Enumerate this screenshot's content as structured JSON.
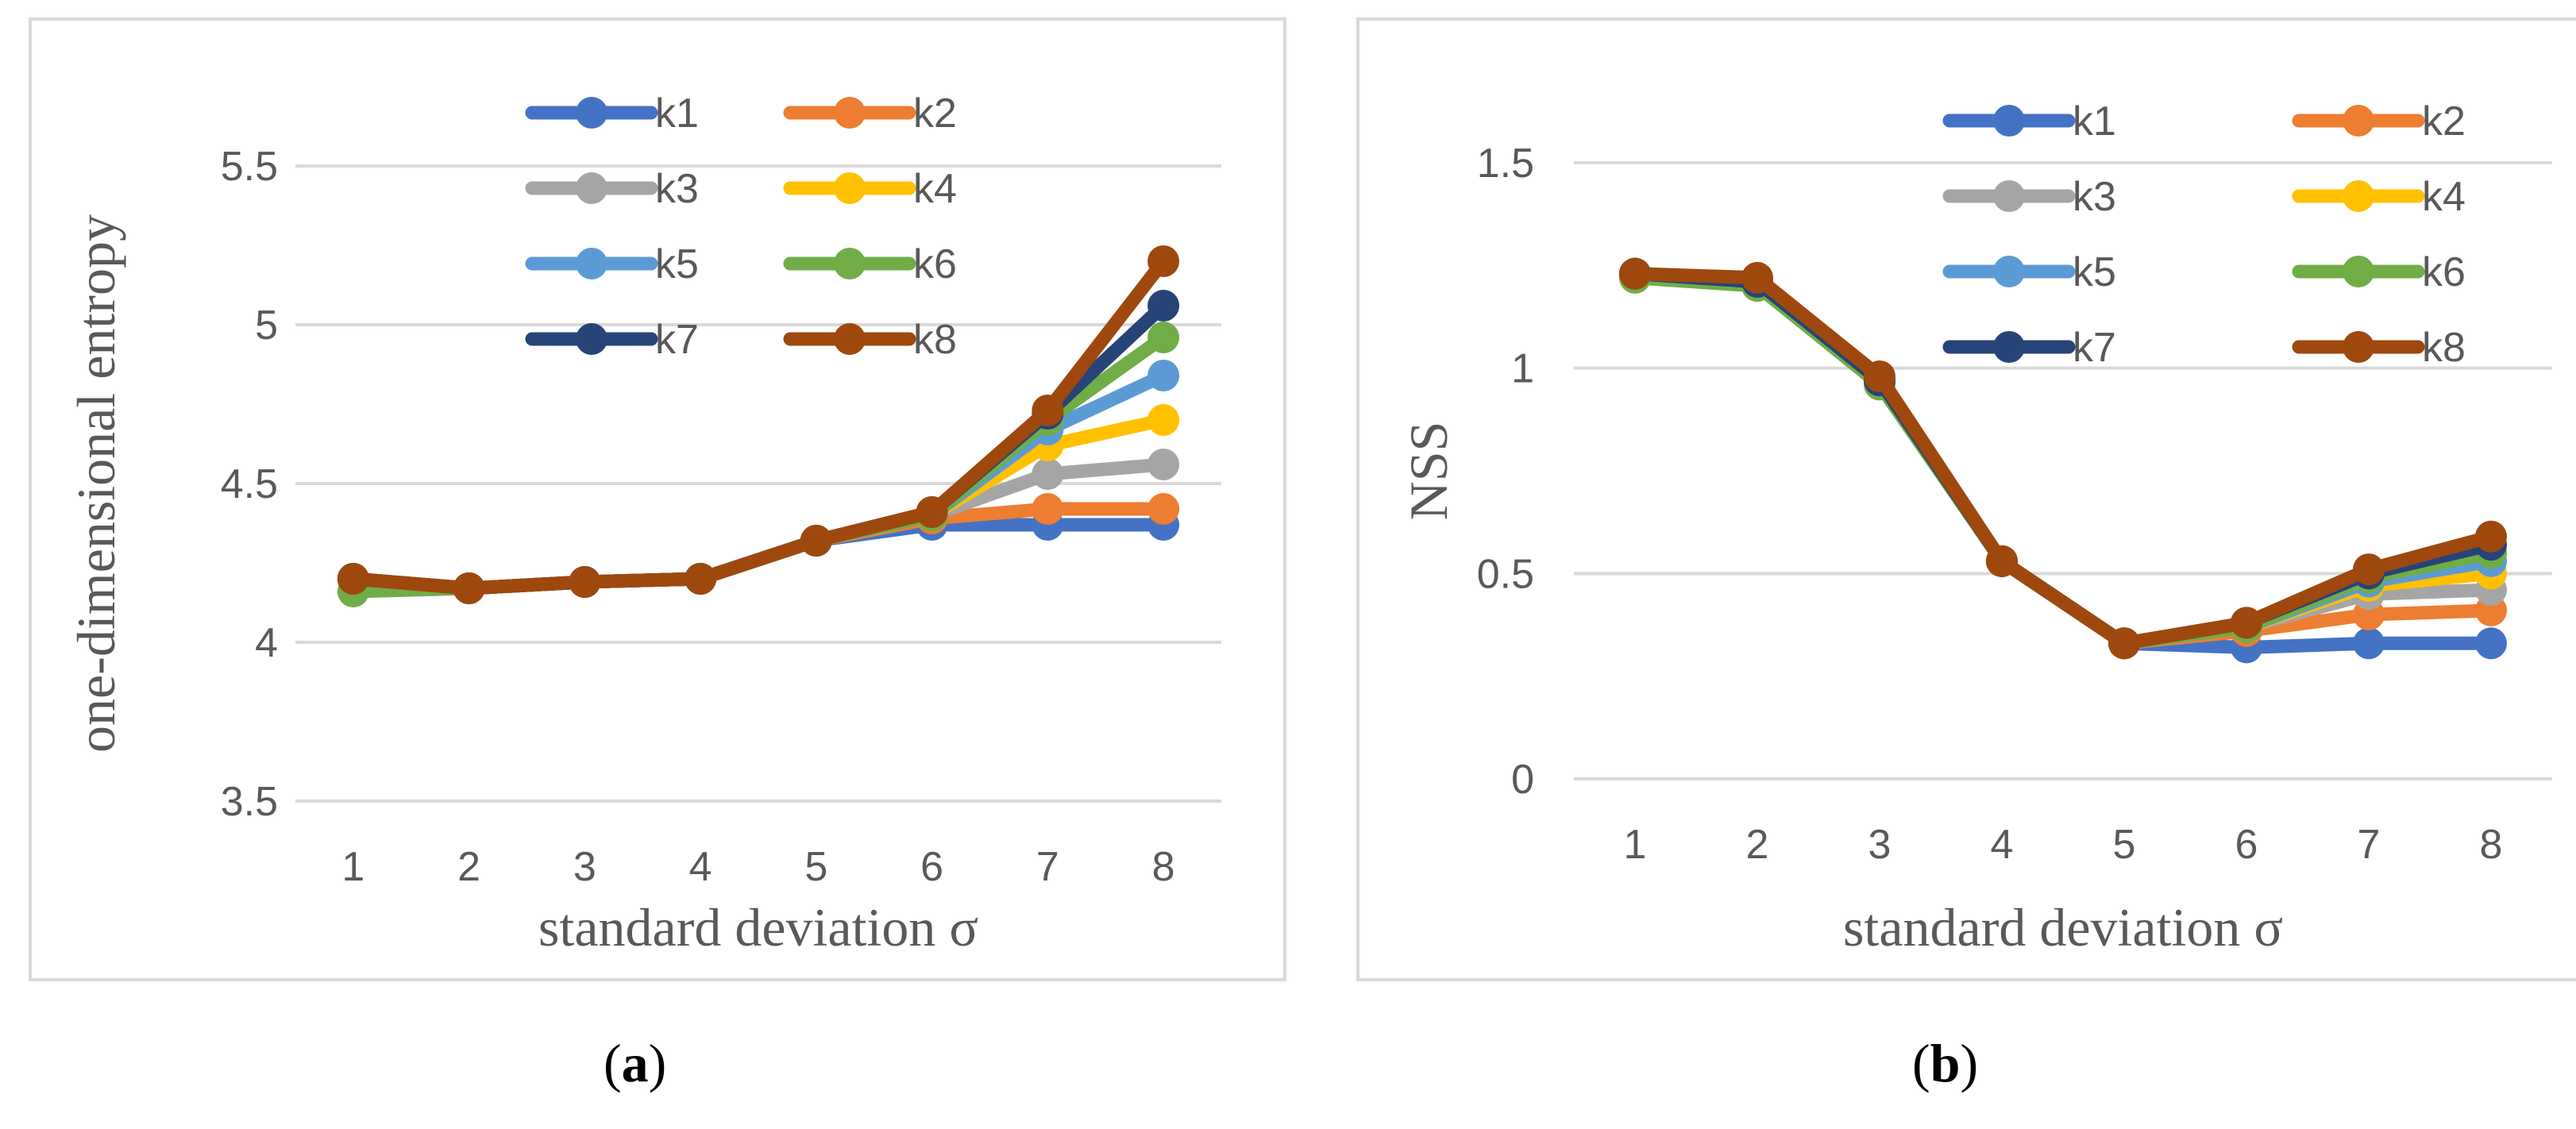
{
  "chart_data": [
    {
      "type": "line",
      "panel": "a",
      "title": "",
      "xlabel": "standard deviation σ",
      "ylabel": "one-dimensional entropy",
      "x": [
        1,
        2,
        3,
        4,
        5,
        6,
        7,
        8
      ],
      "y_ticks": [
        "3.5",
        "4",
        "4.5",
        "5",
        "5.5"
      ],
      "ylim": [
        3.5,
        5.5
      ],
      "grid": true,
      "legend_position": "top-right",
      "series": [
        {
          "name": "k1",
          "color": "#4472C4",
          "values": [
            4.2,
            4.17,
            4.19,
            4.2,
            4.32,
            4.37,
            4.37,
            4.37
          ]
        },
        {
          "name": "k2",
          "color": "#ED7D31",
          "values": [
            4.2,
            4.17,
            4.19,
            4.2,
            4.32,
            4.39,
            4.42,
            4.42
          ]
        },
        {
          "name": "k3",
          "color": "#A5A5A5",
          "values": [
            4.2,
            4.17,
            4.19,
            4.2,
            4.32,
            4.4,
            4.53,
            4.56
          ]
        },
        {
          "name": "k4",
          "color": "#FFC000",
          "values": [
            4.2,
            4.17,
            4.19,
            4.2,
            4.32,
            4.4,
            4.62,
            4.7
          ]
        },
        {
          "name": "k5",
          "color": "#5B9BD5",
          "values": [
            4.2,
            4.17,
            4.19,
            4.2,
            4.32,
            4.4,
            4.67,
            4.84
          ]
        },
        {
          "name": "k6",
          "color": "#70AD47",
          "values": [
            4.16,
            4.17,
            4.19,
            4.2,
            4.32,
            4.4,
            4.7,
            4.96
          ]
        },
        {
          "name": "k7",
          "color": "#264478",
          "values": [
            4.2,
            4.17,
            4.19,
            4.2,
            4.32,
            4.41,
            4.72,
            5.06
          ]
        },
        {
          "name": "k8",
          "color": "#9E480E",
          "values": [
            4.2,
            4.17,
            4.19,
            4.2,
            4.32,
            4.41,
            4.73,
            5.2
          ]
        }
      ]
    },
    {
      "type": "line",
      "panel": "b",
      "title": "",
      "xlabel": "standard deviation σ",
      "ylabel": "NSS",
      "x": [
        1,
        2,
        3,
        4,
        5,
        6,
        7,
        8
      ],
      "y_ticks": [
        "0",
        "0.5",
        "1",
        "1.5"
      ],
      "ylim": [
        0,
        1.5
      ],
      "grid": true,
      "legend_position": "top-right",
      "series": [
        {
          "name": "k1",
          "color": "#4472C4",
          "values": [
            1.23,
            1.21,
            0.97,
            0.53,
            0.33,
            0.32,
            0.33,
            0.33
          ]
        },
        {
          "name": "k2",
          "color": "#ED7D31",
          "values": [
            1.23,
            1.21,
            0.97,
            0.53,
            0.33,
            0.36,
            0.4,
            0.41
          ]
        },
        {
          "name": "k3",
          "color": "#A5A5A5",
          "values": [
            1.23,
            1.21,
            0.97,
            0.53,
            0.33,
            0.37,
            0.45,
            0.46
          ]
        },
        {
          "name": "k4",
          "color": "#FFC000",
          "values": [
            1.23,
            1.21,
            0.97,
            0.53,
            0.33,
            0.37,
            0.47,
            0.5
          ]
        },
        {
          "name": "k5",
          "color": "#5B9BD5",
          "values": [
            1.23,
            1.21,
            0.97,
            0.53,
            0.33,
            0.37,
            0.48,
            0.53
          ]
        },
        {
          "name": "k6",
          "color": "#70AD47",
          "values": [
            1.22,
            1.2,
            0.96,
            0.53,
            0.33,
            0.37,
            0.49,
            0.55
          ]
        },
        {
          "name": "k7",
          "color": "#264478",
          "values": [
            1.23,
            1.21,
            0.97,
            0.53,
            0.33,
            0.38,
            0.5,
            0.57
          ]
        },
        {
          "name": "k8",
          "color": "#9E480E",
          "values": [
            1.23,
            1.22,
            0.98,
            0.53,
            0.33,
            0.38,
            0.51,
            0.59
          ]
        }
      ]
    }
  ],
  "captions": {
    "a": {
      "open": "(",
      "letter": "a",
      "close": ")"
    },
    "b": {
      "open": "(",
      "letter": "b",
      "close": ")"
    }
  }
}
